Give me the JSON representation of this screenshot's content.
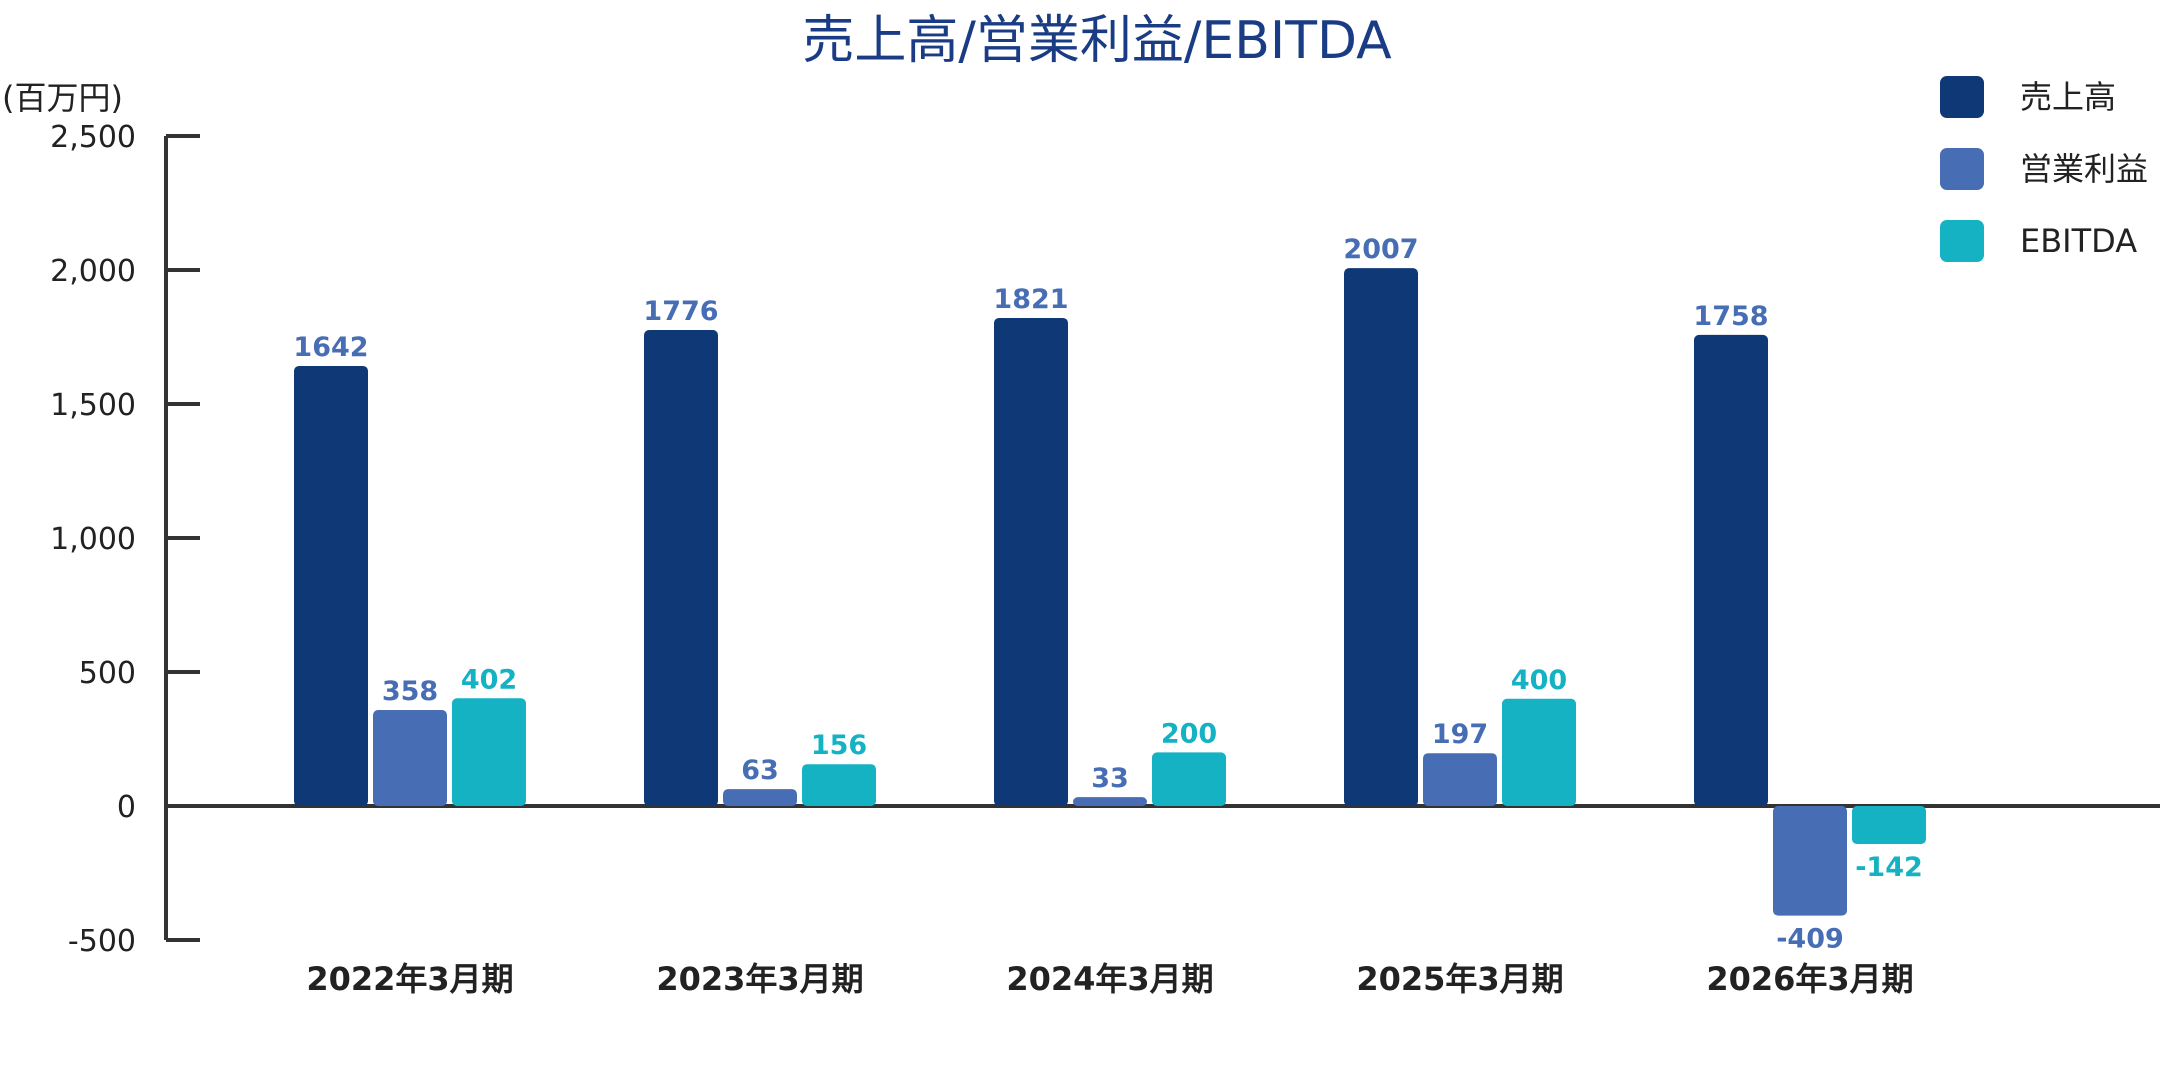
{
  "chart_data": {
    "type": "bar",
    "title": "売上高/営業利益/EBITDA",
    "unit_label": "(百万円)",
    "categories": [
      "2022年3月期",
      "2023年3月期",
      "2024年3月期",
      "2025年3月期",
      "2026年3月期"
    ],
    "series": [
      {
        "name": "売上高",
        "values": [
          1642,
          1776,
          1821,
          2007,
          1758
        ],
        "color": "#0f3877"
      },
      {
        "name": "営業利益",
        "values": [
          358,
          63,
          33,
          197,
          -409
        ],
        "color": "#476db4"
      },
      {
        "name": "EBITDA",
        "values": [
          402,
          156,
          200,
          400,
          -142
        ],
        "color": "#14b2c3"
      }
    ],
    "ylim": [
      -500,
      2500
    ],
    "yticks": [
      -500,
      0,
      500,
      1000,
      1500,
      2000,
      2500
    ],
    "ytick_labels": [
      "-500",
      "0",
      "500",
      "1,000",
      "1,500",
      "2,000",
      "2,500"
    ],
    "legend_position": "top-right",
    "grid": false,
    "colors": {
      "title": "#1a3c84",
      "axis": "#333333",
      "tick_text": "#222222",
      "category_text": "#222222"
    }
  }
}
